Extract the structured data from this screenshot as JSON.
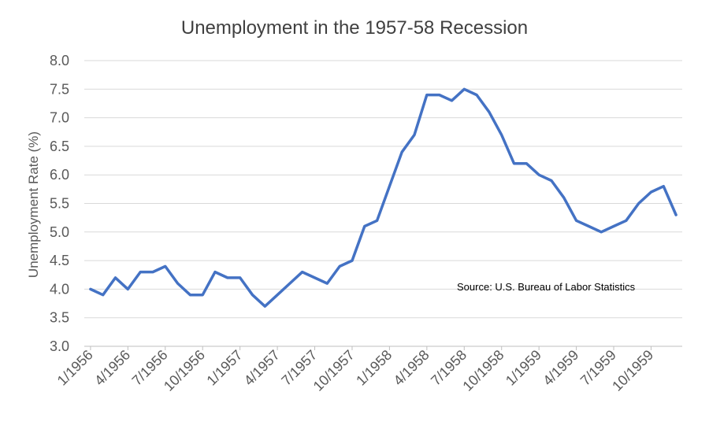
{
  "chart_data": {
    "type": "line",
    "title": "Unemployment  in the 1957-58 Recession",
    "xlabel": "",
    "ylabel": "Unemployment Rate (%)",
    "annotation": "Source:  U.S. Bureau of Labor Statistics",
    "ylim": [
      3.0,
      8.0
    ],
    "y_ticks": [
      "3.0",
      "3.5",
      "4.0",
      "4.5",
      "5.0",
      "5.5",
      "6.0",
      "6.5",
      "7.0",
      "7.5",
      "8.0"
    ],
    "x_tick_labels": [
      "1/1956",
      "4/1956",
      "7/1956",
      "10/1956",
      "1/1957",
      "4/1957",
      "7/1957",
      "10/1957",
      "1/1958",
      "4/1958",
      "7/1958",
      "10/1958",
      "1/1959",
      "4/1959",
      "7/1959",
      "10/1959"
    ],
    "grid": true,
    "x": [
      "1956-01",
      "1956-02",
      "1956-03",
      "1956-04",
      "1956-05",
      "1956-06",
      "1956-07",
      "1956-08",
      "1956-09",
      "1956-10",
      "1956-11",
      "1956-12",
      "1957-01",
      "1957-02",
      "1957-03",
      "1957-04",
      "1957-05",
      "1957-06",
      "1957-07",
      "1957-08",
      "1957-09",
      "1957-10",
      "1957-11",
      "1957-12",
      "1958-01",
      "1958-02",
      "1958-03",
      "1958-04",
      "1958-05",
      "1958-06",
      "1958-07",
      "1958-08",
      "1958-09",
      "1958-10",
      "1958-11",
      "1958-12",
      "1959-01",
      "1959-02",
      "1959-03",
      "1959-04",
      "1959-05",
      "1959-06",
      "1959-07",
      "1959-08",
      "1959-09",
      "1959-10",
      "1959-11",
      "1959-12"
    ],
    "series": [
      {
        "values": [
          4.0,
          3.9,
          4.2,
          4.0,
          4.3,
          4.3,
          4.4,
          4.1,
          3.9,
          3.9,
          4.3,
          4.2,
          4.2,
          3.9,
          3.7,
          3.9,
          4.1,
          4.3,
          4.2,
          4.1,
          4.4,
          4.5,
          5.1,
          5.2,
          5.8,
          6.4,
          6.7,
          7.4,
          7.4,
          7.3,
          7.5,
          7.4,
          7.1,
          6.7,
          6.2,
          6.2,
          6.0,
          5.9,
          5.6,
          5.2,
          5.1,
          5.0,
          5.1,
          5.2,
          5.5,
          5.7,
          5.8,
          5.3
        ],
        "color": "#4472C4"
      }
    ]
  }
}
